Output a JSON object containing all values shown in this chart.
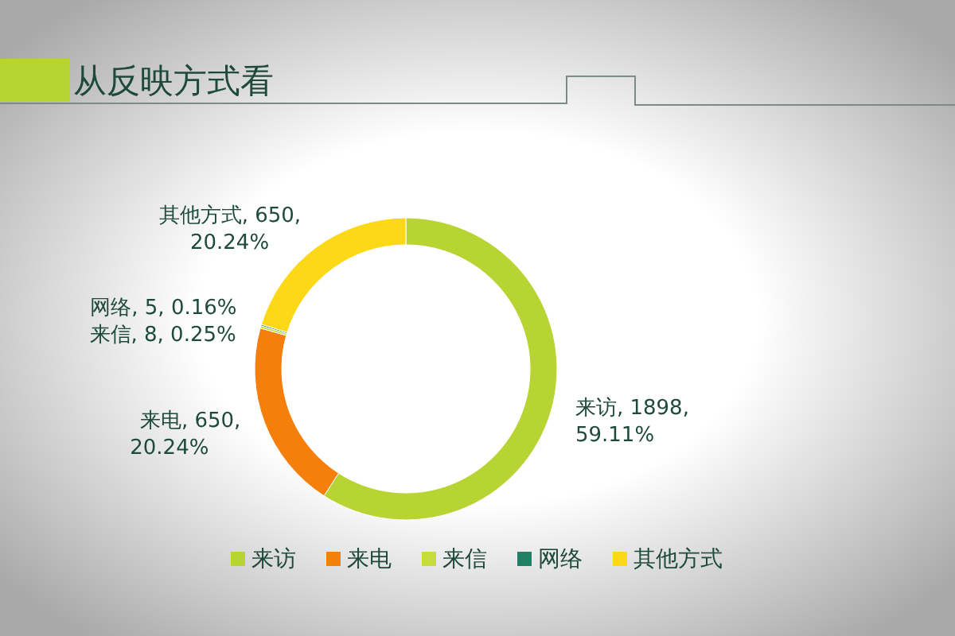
{
  "chart_data": {
    "type": "donut",
    "title": "从反映方式看",
    "categories": [
      "来访",
      "来电",
      "来信",
      "网络",
      "其他方式"
    ],
    "values": [
      1898,
      650,
      8,
      5,
      650
    ],
    "value_labels": [
      "来访, 1898, 59.11%",
      "来电, 650, 20.24%",
      "来信, 8, 0.25%",
      "网络, 5, 0.16%",
      "其他方式, 650, 20.24%"
    ],
    "colors": [
      "#b8d433",
      "#f57f0a",
      "#c5dc3c",
      "#1f8063",
      "#fdd816"
    ],
    "data_labels": true,
    "legend": "bottom"
  }
}
